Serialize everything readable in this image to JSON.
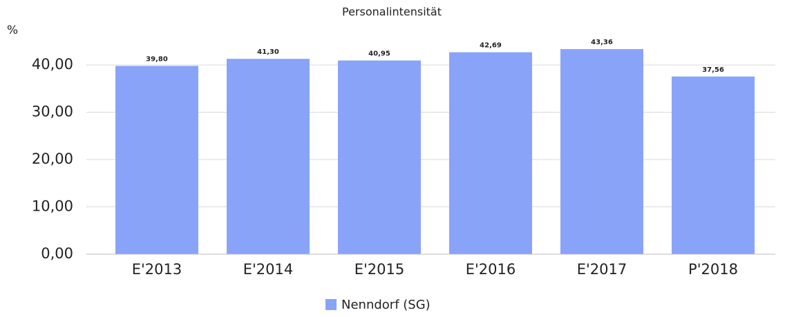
{
  "chart_data": {
    "type": "bar",
    "title": "Personalintensität",
    "y_label": "%",
    "categories": [
      "E'2013",
      "E'2014",
      "E'2015",
      "E'2016",
      "E'2017",
      "P'2018"
    ],
    "series": [
      {
        "name": "Nenndorf (SG)",
        "color": "#89a3f9",
        "values": [
          39.8,
          41.3,
          40.95,
          42.69,
          43.36,
          37.56
        ],
        "value_labels": [
          "39,80",
          "41,30",
          "40,95",
          "42,69",
          "43,36",
          "37,56"
        ]
      }
    ],
    "ylim": [
      0,
      46
    ],
    "yticks": [
      {
        "value": 0,
        "label": "0,00"
      },
      {
        "value": 10,
        "label": "10,00"
      },
      {
        "value": 20,
        "label": "20,00"
      },
      {
        "value": 30,
        "label": "30,00"
      },
      {
        "value": 40,
        "label": "40,00"
      }
    ],
    "grid": true,
    "legend": "bottom"
  }
}
